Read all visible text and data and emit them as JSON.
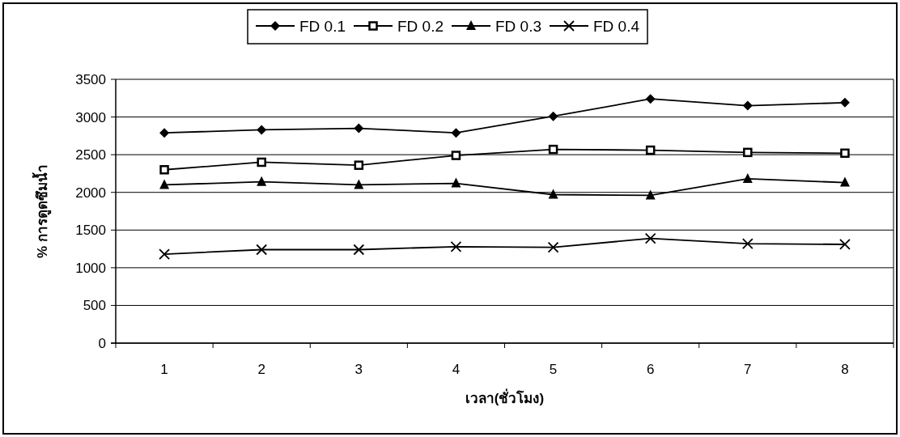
{
  "chart_data": {
    "type": "line",
    "xlabel": "เวลา(ชั่วโมง)",
    "ylabel": "% การดูดซึมน้ำ",
    "categories": [
      "1",
      "2",
      "3",
      "4",
      "5",
      "6",
      "7",
      "8"
    ],
    "ylim": [
      0,
      3500
    ],
    "yticks": [
      0,
      500,
      1000,
      1500,
      2000,
      2500,
      3000,
      3500
    ],
    "grid": "y",
    "legend": "top",
    "line_style": "solid",
    "series": [
      {
        "name": "FD 0.1",
        "color": "#000000",
        "marker": "diamond",
        "values": [
          2790,
          2830,
          2850,
          2790,
          3010,
          3240,
          3150,
          3190
        ]
      },
      {
        "name": "FD 0.2",
        "color": "#000000",
        "marker": "square",
        "values": [
          2300,
          2400,
          2360,
          2490,
          2570,
          2560,
          2530,
          2520
        ]
      },
      {
        "name": "FD 0.3",
        "color": "#000000",
        "marker": "triangle",
        "values": [
          2100,
          2140,
          2100,
          2120,
          1970,
          1960,
          2180,
          2130
        ]
      },
      {
        "name": "FD 0.4",
        "color": "#000000",
        "marker": "cross",
        "values": [
          1180,
          1240,
          1240,
          1280,
          1270,
          1390,
          1320,
          1310
        ]
      }
    ]
  }
}
